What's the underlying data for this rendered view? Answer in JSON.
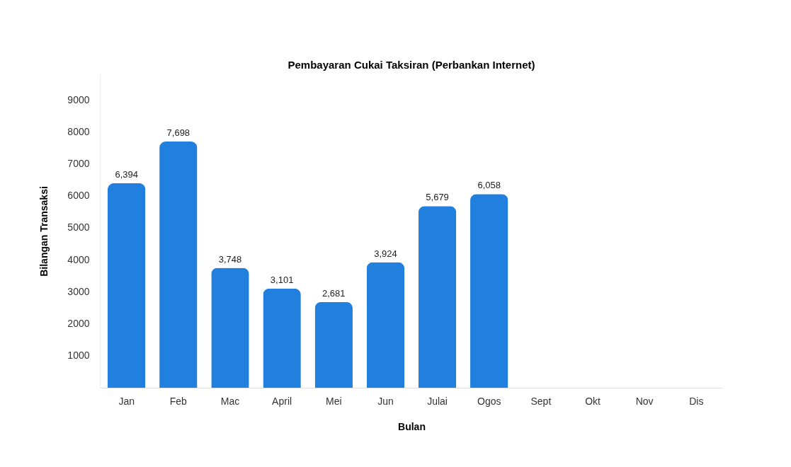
{
  "chart_data": {
    "type": "bar",
    "title": "Pembayaran Cukai Taksiran (Perbankan Internet)",
    "xlabel": "Bulan",
    "ylabel": "Bilangan Transaksi",
    "categories": [
      "Jan",
      "Feb",
      "Mac",
      "April",
      "Mei",
      "Jun",
      "Julai",
      "Ogos",
      "Sept",
      "Okt",
      "Nov",
      "Dis"
    ],
    "values": [
      6394,
      7698,
      3748,
      3101,
      2681,
      3924,
      5679,
      6058,
      null,
      null,
      null,
      null
    ],
    "value_labels": [
      "6,394",
      "7,698",
      "3,748",
      "3,101",
      "2,681",
      "3,924",
      "5,679",
      "6,058",
      null,
      null,
      null,
      null
    ],
    "color": "#2180de",
    "ylim": [
      0,
      9800
    ],
    "yticks": [
      1000,
      2000,
      3000,
      4000,
      5000,
      6000,
      7000,
      8000,
      9000
    ],
    "grid": false
  }
}
